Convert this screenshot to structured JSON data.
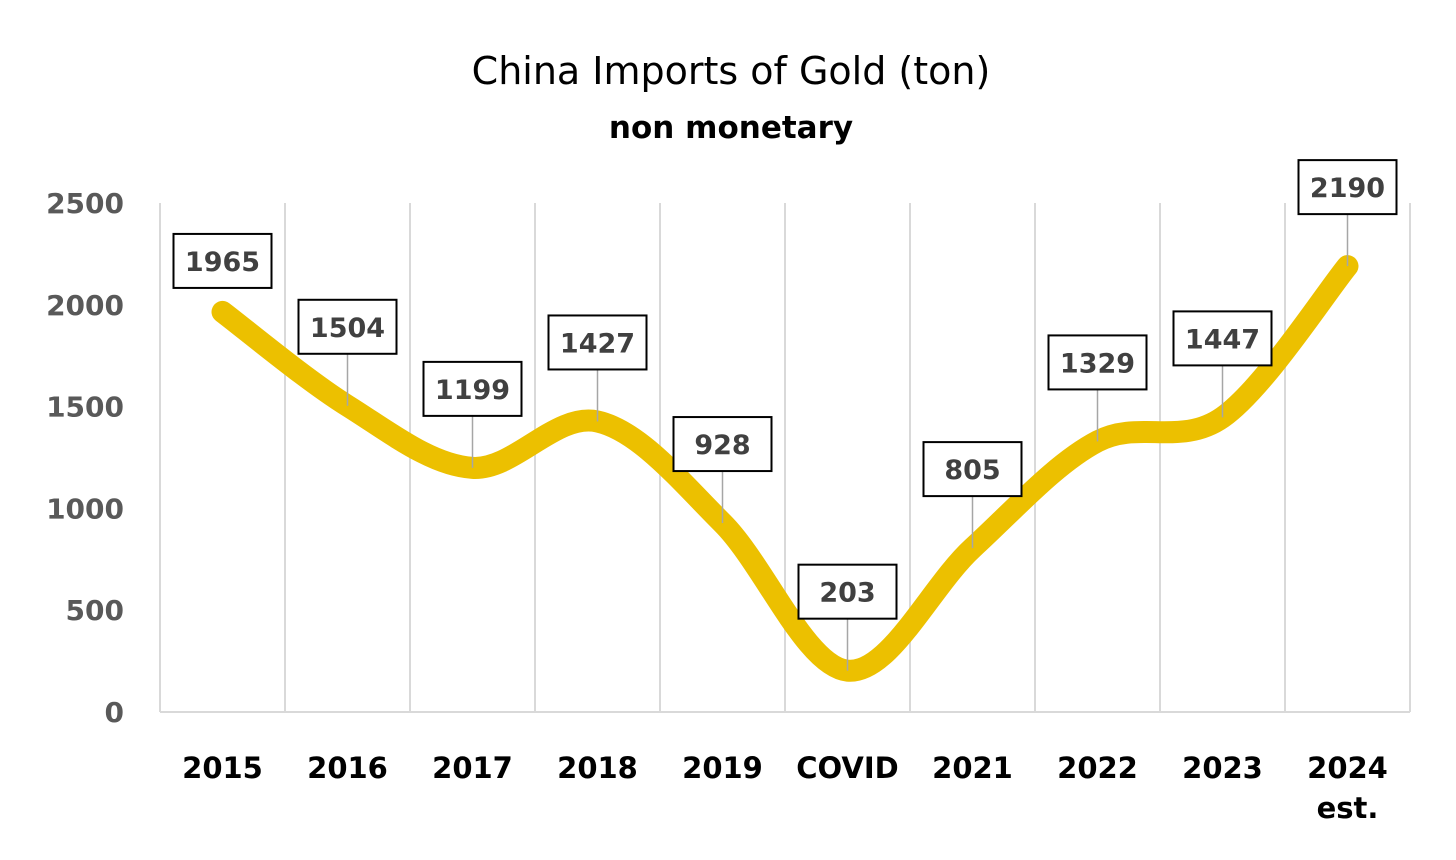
{
  "chart_data": {
    "type": "line",
    "title": "China Imports of Gold (ton)",
    "subtitle": "non monetary",
    "categories": [
      "2015",
      "2016",
      "2017",
      "2018",
      "2019",
      "COVID",
      "2021",
      "2022",
      "2023",
      "2024 est."
    ],
    "series": [
      {
        "values": [
          1965,
          1504,
          1199,
          1427,
          928,
          203,
          805,
          1329,
          1447,
          2190
        ],
        "color": "#ecc000"
      }
    ],
    "ylim": [
      0,
      2500
    ],
    "yticks": [
      0,
      500,
      1000,
      1500,
      2000,
      2500
    ],
    "xlabel": "",
    "ylabel": "",
    "grid": "vertical",
    "legend": "none",
    "smooth": true,
    "data_labels": true
  }
}
